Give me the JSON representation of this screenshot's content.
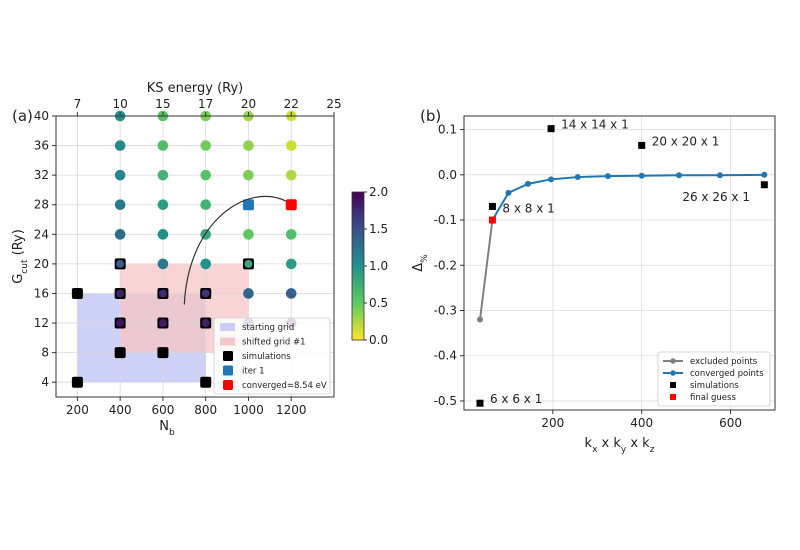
{
  "panels": {
    "left_label": "(a)",
    "right_label": "(b)"
  },
  "chart_data": [
    {
      "type": "scatter",
      "xlabel": "N_b",
      "ylabel": "G_cut (Ry)",
      "top_xlabel": "KS energy (Ry)",
      "xlim": [
        100,
        1400
      ],
      "ylim": [
        2,
        40
      ],
      "x_ticks": [
        "200",
        "400",
        "600",
        "800",
        "1000",
        "1200"
      ],
      "y_ticks": [
        "4",
        "8",
        "12",
        "16",
        "20",
        "24",
        "28",
        "32",
        "36",
        "40"
      ],
      "top_ticks": [
        {
          "label": "7",
          "x": 200
        },
        {
          "label": "10",
          "x": 400
        },
        {
          "label": "15",
          "x": 600
        },
        {
          "label": "17",
          "x": 800
        },
        {
          "label": "20",
          "x": 1000
        },
        {
          "label": "22",
          "x": 1200
        },
        {
          "label": "25",
          "x": 1400
        }
      ],
      "colorbar": {
        "min": 0.0,
        "max": 2.0,
        "ticks": [
          "0.0",
          "0.5",
          "1.0",
          "1.5",
          "2.0"
        ],
        "colormap": "viridis_r"
      },
      "grid_points": {
        "x": [
          400,
          600,
          800,
          1000,
          1200
        ],
        "y": [
          12,
          16,
          20,
          24,
          28,
          32,
          36,
          40
        ],
        "values": [
          [
            1.9,
            1.85,
            1.8,
            1.75,
            1.95
          ],
          [
            1.8,
            1.75,
            1.7,
            1.35,
            1.4
          ],
          [
            1.4,
            1.2,
            1.0,
            0.8,
            0.9
          ],
          [
            1.3,
            1.0,
            0.8,
            0.5,
            0.6
          ],
          [
            1.2,
            0.9,
            0.7,
            1.5,
            0.3
          ],
          [
            1.1,
            0.7,
            0.55,
            0.4,
            0.25
          ],
          [
            1.05,
            0.6,
            0.45,
            0.35,
            0.15
          ],
          [
            1.0,
            0.55,
            0.4,
            0.3,
            0.15
          ]
        ]
      },
      "simulations": [
        [
          200,
          4
        ],
        [
          200,
          16
        ],
        [
          400,
          8
        ],
        [
          400,
          12
        ],
        [
          400,
          16
        ],
        [
          400,
          20
        ],
        [
          600,
          8
        ],
        [
          600,
          12
        ],
        [
          600,
          16
        ],
        [
          800,
          4
        ],
        [
          800,
          12
        ],
        [
          800,
          16
        ],
        [
          1000,
          20
        ]
      ],
      "iter1": [
        [
          1000,
          28
        ]
      ],
      "converged_point": [
        1200,
        28
      ],
      "starting_grid": {
        "x": [
          200,
          800
        ],
        "y": [
          4,
          16
        ]
      },
      "shifted_grid": {
        "x": [
          400,
          1000
        ],
        "y": [
          8,
          20
        ]
      },
      "legend": {
        "position": "lower-right",
        "entries": [
          {
            "label": "starting grid",
            "color": "#c9cdf7"
          },
          {
            "label": "shifted grid #1",
            "color": "#f5c6c6"
          },
          {
            "label": "simulations",
            "color": "#000000"
          },
          {
            "label": "iter 1",
            "color": "#1f77b4"
          },
          {
            "label": "converged=8.54 eV",
            "color": "#ff0000"
          }
        ]
      },
      "colors": {
        "starting_grid": "#c9cdf7",
        "shifted_grid": "#f5c6c6",
        "iter1": "#1f77b4",
        "converged": "#ff0000"
      }
    },
    {
      "type": "line",
      "xlabel": "k_x x k_y x k_z",
      "ylabel": "Δ%",
      "xlim": [
        0,
        700
      ],
      "ylim": [
        -0.52,
        0.13
      ],
      "x_ticks": [
        "200",
        "400",
        "600"
      ],
      "y_ticks": [
        "0.1",
        "0.0",
        "-0.1",
        "-0.2",
        "-0.3",
        "-0.4",
        "-0.5"
      ],
      "grid": true,
      "series": [
        {
          "name": "excluded points",
          "color": "#808080",
          "x": [
            36,
            64
          ],
          "y": [
            -0.32,
            -0.1
          ]
        },
        {
          "name": "converged points",
          "color": "#1f77b4",
          "x": [
            64,
            100,
            144,
            196,
            256,
            324,
            400,
            484,
            576,
            676
          ],
          "y": [
            -0.1,
            -0.04,
            -0.02,
            -0.01,
            -0.005,
            -0.003,
            -0.002,
            -0.001,
            -0.001,
            0.0
          ]
        }
      ],
      "simulations": [
        [
          36,
          -0.505
        ],
        [
          64,
          -0.07
        ],
        [
          196,
          0.102
        ],
        [
          400,
          0.065
        ],
        [
          676,
          -0.022
        ]
      ],
      "final_guess": [
        64,
        -0.1
      ],
      "annotations": [
        {
          "text": "6 x 6 x 1",
          "x": 36,
          "y": -0.505
        },
        {
          "text": "8 x 8 x 1",
          "x": 64,
          "y": -0.07
        },
        {
          "text": "14 x 14 x 1",
          "x": 196,
          "y": 0.102
        },
        {
          "text": "20 x 20 x 1",
          "x": 400,
          "y": 0.065
        },
        {
          "text": "26 x 26 x 1",
          "x": 676,
          "y": -0.022
        }
      ],
      "legend": {
        "position": "lower-right",
        "entries": [
          {
            "label": "excluded points",
            "color": "#808080"
          },
          {
            "label": "converged points",
            "color": "#1f77b4"
          },
          {
            "label": "simulations",
            "color": "#000000"
          },
          {
            "label": "final guess",
            "color": "#ff0000"
          }
        ]
      }
    }
  ]
}
